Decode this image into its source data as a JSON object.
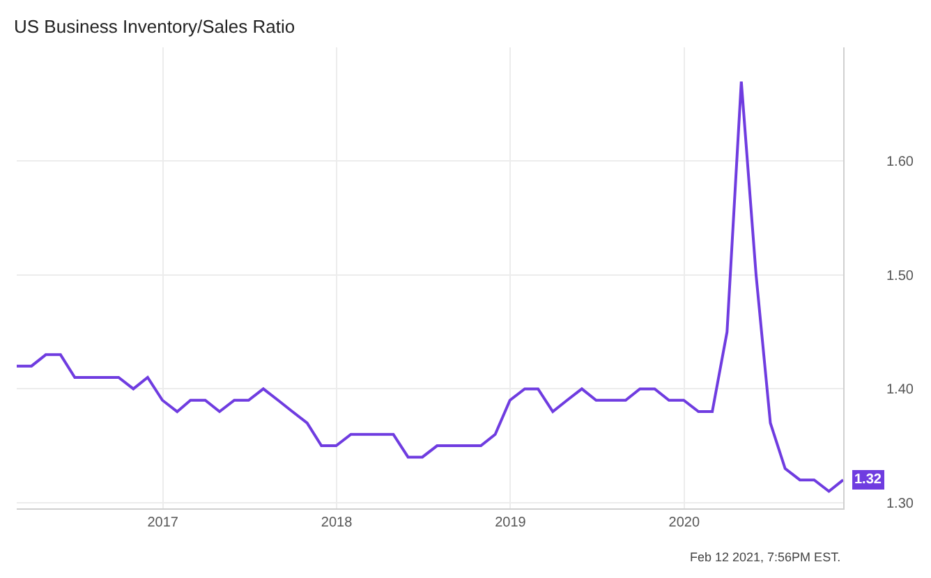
{
  "chart_data": {
    "type": "line",
    "title": "US Business Inventory/Sales Ratio",
    "x": [
      "2016-02-29",
      "2016-03-31",
      "2016-04-30",
      "2016-05-31",
      "2016-06-30",
      "2016-07-31",
      "2016-08-31",
      "2016-09-30",
      "2016-10-31",
      "2016-11-30",
      "2016-12-31",
      "2017-01-31",
      "2017-02-28",
      "2017-03-31",
      "2017-04-30",
      "2017-05-31",
      "2017-06-30",
      "2017-07-31",
      "2017-08-31",
      "2017-09-30",
      "2017-10-31",
      "2017-11-30",
      "2017-12-31",
      "2018-01-31",
      "2018-02-28",
      "2018-03-31",
      "2018-04-30",
      "2018-05-31",
      "2018-06-30",
      "2018-07-31",
      "2018-08-31",
      "2018-09-30",
      "2018-10-31",
      "2018-11-30",
      "2018-12-31",
      "2019-01-31",
      "2019-02-28",
      "2019-03-31",
      "2019-04-30",
      "2019-05-31",
      "2019-06-30",
      "2019-07-31",
      "2019-08-31",
      "2019-09-30",
      "2019-10-31",
      "2019-11-30",
      "2019-12-31",
      "2020-01-31",
      "2020-02-29",
      "2020-03-31",
      "2020-04-30",
      "2020-05-31",
      "2020-06-30",
      "2020-07-31",
      "2020-08-31",
      "2020-09-30",
      "2020-10-31",
      "2020-11-30"
    ],
    "series": [
      {
        "color": "#6f3ce0",
        "values": [
          1.42,
          1.42,
          1.43,
          1.43,
          1.41,
          1.41,
          1.41,
          1.41,
          1.4,
          1.41,
          1.39,
          1.38,
          1.39,
          1.39,
          1.38,
          1.39,
          1.39,
          1.4,
          1.39,
          1.38,
          1.37,
          1.35,
          1.35,
          1.36,
          1.36,
          1.36,
          1.36,
          1.34,
          1.34,
          1.35,
          1.35,
          1.35,
          1.35,
          1.36,
          1.39,
          1.4,
          1.4,
          1.38,
          1.39,
          1.4,
          1.39,
          1.39,
          1.39,
          1.4,
          1.4,
          1.39,
          1.39,
          1.38,
          1.38,
          1.45,
          1.67,
          1.5,
          1.37,
          1.33,
          1.32,
          1.32,
          1.31,
          1.32
        ]
      }
    ],
    "xlim": [
      "2016-02-29",
      "2020-11-30"
    ],
    "xticks": [
      {
        "value": "2017-01-01",
        "label": "2017"
      },
      {
        "value": "2018-01-01",
        "label": "2018"
      },
      {
        "value": "2019-01-01",
        "label": "2019"
      },
      {
        "value": "2020-01-01",
        "label": "2020"
      }
    ],
    "ylim": [
      1.295,
      1.7
    ],
    "yticks": [
      {
        "value": 1.3,
        "label": "1.30"
      },
      {
        "value": 1.4,
        "label": "1.40"
      },
      {
        "value": 1.5,
        "label": "1.50"
      },
      {
        "value": 1.6,
        "label": "1.60"
      }
    ],
    "grid": true,
    "marker": "none",
    "line_style": "solid",
    "annotations": [
      {
        "text": "1.32",
        "x": "2020-11-30",
        "y": 1.32
      },
      "Feb 12 2021, 7:56PM EST."
    ]
  }
}
